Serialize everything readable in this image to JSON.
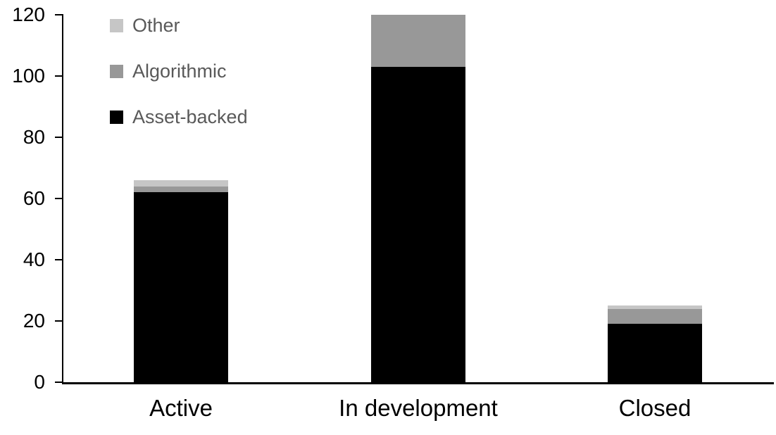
{
  "chart_data": {
    "type": "bar",
    "stacked": true,
    "title": "",
    "xlabel": "",
    "ylabel": "",
    "categories": [
      "Active",
      "In development",
      "Closed"
    ],
    "series": [
      {
        "name": "Other",
        "color": "#c6c6c6",
        "values": [
          2,
          0,
          1
        ]
      },
      {
        "name": "Algorithmic",
        "color": "#989898",
        "values": [
          2,
          17,
          5
        ]
      },
      {
        "name": "Asset-backed",
        "color": "#000000",
        "values": [
          62,
          103,
          19
        ]
      }
    ],
    "totals": [
      66,
      120,
      25
    ],
    "ylim": [
      0,
      120
    ],
    "yticks": [
      "0",
      "20",
      "40",
      "60",
      "80",
      "100",
      "120"
    ],
    "grid": false,
    "legend_position": "top-left-inside",
    "colors": {
      "axis": "#000000",
      "tick_label": "#000000",
      "legend_text": "#595959",
      "background": "#ffffff"
    }
  }
}
